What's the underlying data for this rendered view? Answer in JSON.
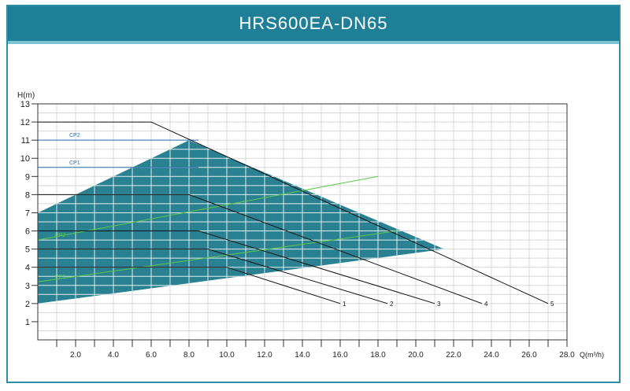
{
  "title": "HRS600EA-DN65",
  "chart_data": {
    "type": "line",
    "ylabel": "H(m)",
    "xlabel": "Q(m³/h)",
    "xlim": [
      0,
      28
    ],
    "ylim": [
      0,
      13
    ],
    "x_ticks": [
      2,
      4,
      6,
      8,
      10,
      12,
      14,
      16,
      18,
      20,
      22,
      24,
      26,
      28
    ],
    "x_tick_labels": [
      "2.0",
      "4.0",
      "6.0",
      "8.0",
      "10.0",
      "12.0",
      "14.0",
      "16.0",
      "18.0",
      "20.0",
      "22.0",
      "24.0",
      "26.0",
      "28.0"
    ],
    "y_ticks": [
      1,
      2,
      3,
      4,
      5,
      6,
      7,
      8,
      9,
      10,
      11,
      12,
      13
    ],
    "grid": true,
    "operating_region": [
      [
        0,
        7
      ],
      [
        8,
        11
      ],
      [
        21.5,
        5
      ],
      [
        0,
        2
      ]
    ],
    "operating_region_color": "#1f7a8c",
    "series": [
      {
        "name": "1",
        "points": [
          [
            0,
            4
          ],
          [
            10,
            4
          ],
          [
            16,
            2
          ]
        ]
      },
      {
        "name": "2",
        "points": [
          [
            0,
            5
          ],
          [
            9,
            5
          ],
          [
            18.5,
            2
          ]
        ]
      },
      {
        "name": "3",
        "points": [
          [
            0,
            6
          ],
          [
            8.5,
            6
          ],
          [
            21,
            2
          ]
        ]
      },
      {
        "name": "4",
        "points": [
          [
            0,
            8
          ],
          [
            8,
            8
          ],
          [
            23.5,
            2
          ]
        ]
      },
      {
        "name": "5",
        "points": [
          [
            0,
            12
          ],
          [
            6,
            12
          ],
          [
            27,
            2
          ]
        ]
      }
    ],
    "constant_pressure": [
      {
        "name": "CP2",
        "y": 11
      },
      {
        "name": "CP1",
        "y": 9.5
      }
    ],
    "proportional_pressure": [
      {
        "name": "PP2",
        "points": [
          [
            0,
            5.5
          ],
          [
            18,
            9
          ]
        ]
      },
      {
        "name": "PP1",
        "points": [
          [
            0,
            3.2
          ],
          [
            19,
            6
          ]
        ]
      }
    ],
    "line_color": "#111111",
    "cp_color": "#2a6fb0",
    "pp_color": "#5cc94a"
  }
}
